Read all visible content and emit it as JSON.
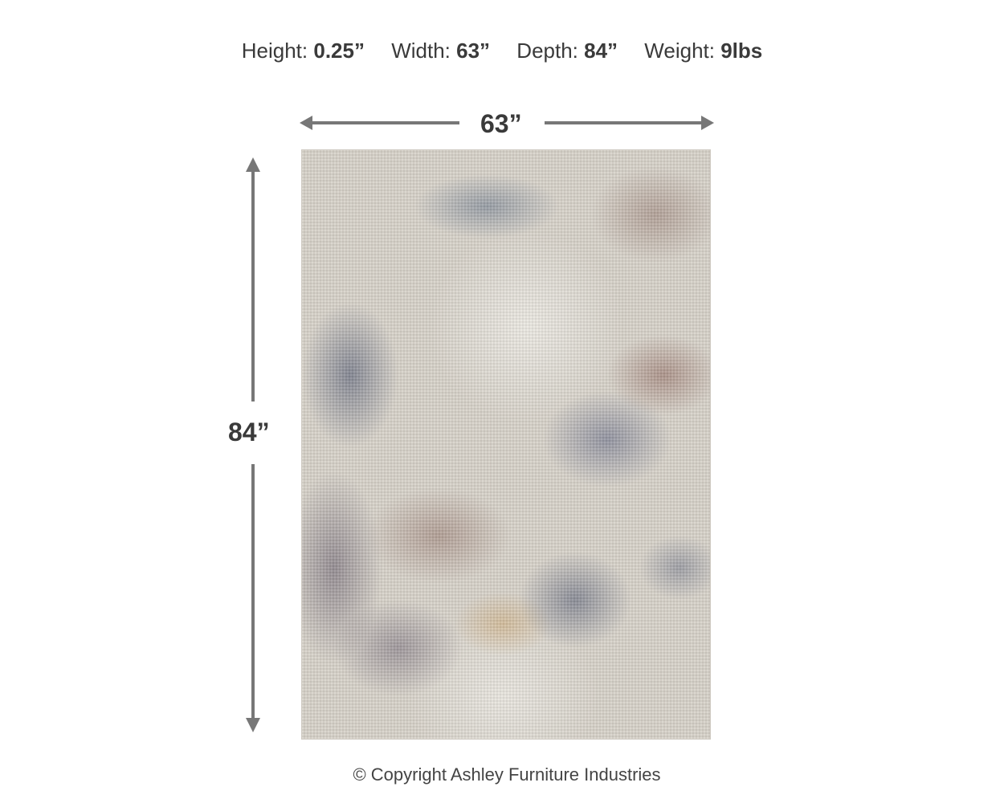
{
  "specs": [
    {
      "label": "Height:",
      "value": "0.25”"
    },
    {
      "label": "Width:",
      "value": "63”"
    },
    {
      "label": "Depth:",
      "value": "84”"
    },
    {
      "label": "Weight:",
      "value": "9lbs"
    }
  ],
  "diagram": {
    "width_label": "63”",
    "height_label": "84”",
    "arrow_color": "#777777"
  },
  "copyright": "© Copyright Ashley Furniture Industries"
}
